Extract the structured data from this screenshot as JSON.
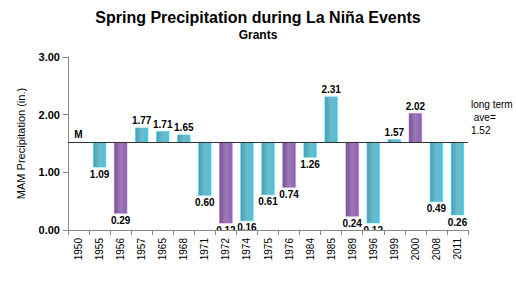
{
  "chart_data": {
    "type": "bar",
    "title": "Spring Precipitation during La Niña Events",
    "subtitle": "Grants",
    "y_label": "MAM Precipitation (in.)",
    "categories": [
      "1950",
      "1955",
      "1956",
      "1957",
      "1965",
      "1968",
      "1971",
      "1972",
      "1974",
      "1975",
      "1976",
      "1984",
      "1985",
      "1989",
      "1996",
      "1999",
      "2000",
      "2008",
      "2011"
    ],
    "values": [
      null,
      1.09,
      0.29,
      1.77,
      1.71,
      1.65,
      0.6,
      0.12,
      0.16,
      0.61,
      0.74,
      1.26,
      2.31,
      0.24,
      0.12,
      1.57,
      2.02,
      0.49,
      0.26
    ],
    "value_labels": [
      "M",
      "1.09",
      "0.29",
      "1.77",
      "1.71",
      "1.65",
      "0.60",
      "0.12",
      "0.16",
      "0.61",
      "0.74",
      "1.26",
      "2.31",
      "0.24",
      "0.12",
      "1.57",
      "2.02",
      "0.49",
      "0.26"
    ],
    "colors": [
      null,
      "#3fa2b8",
      "#7a4f9a",
      "#3fa2b8",
      "#3fa2b8",
      "#3fa2b8",
      "#3fa2b8",
      "#7a4f9a",
      "#3fa2b8",
      "#3fa2b8",
      "#7a4f9a",
      "#3fa2b8",
      "#3fa2b8",
      "#7a4f9a",
      "#3fa2b8",
      "#3fa2b8",
      "#7a4f9a",
      "#3fa2b8",
      "#3fa2b8"
    ],
    "baseline": {
      "value": 1.52,
      "label": "long term ave="
    },
    "ylim": [
      0,
      3
    ],
    "yticks": [
      {
        "value": 0,
        "label": "0.00"
      },
      {
        "value": 1,
        "label": "1.00"
      },
      {
        "value": 2,
        "label": "2.00"
      },
      {
        "value": 3,
        "label": "3.00"
      }
    ],
    "grid": false,
    "data_labels": true
  }
}
